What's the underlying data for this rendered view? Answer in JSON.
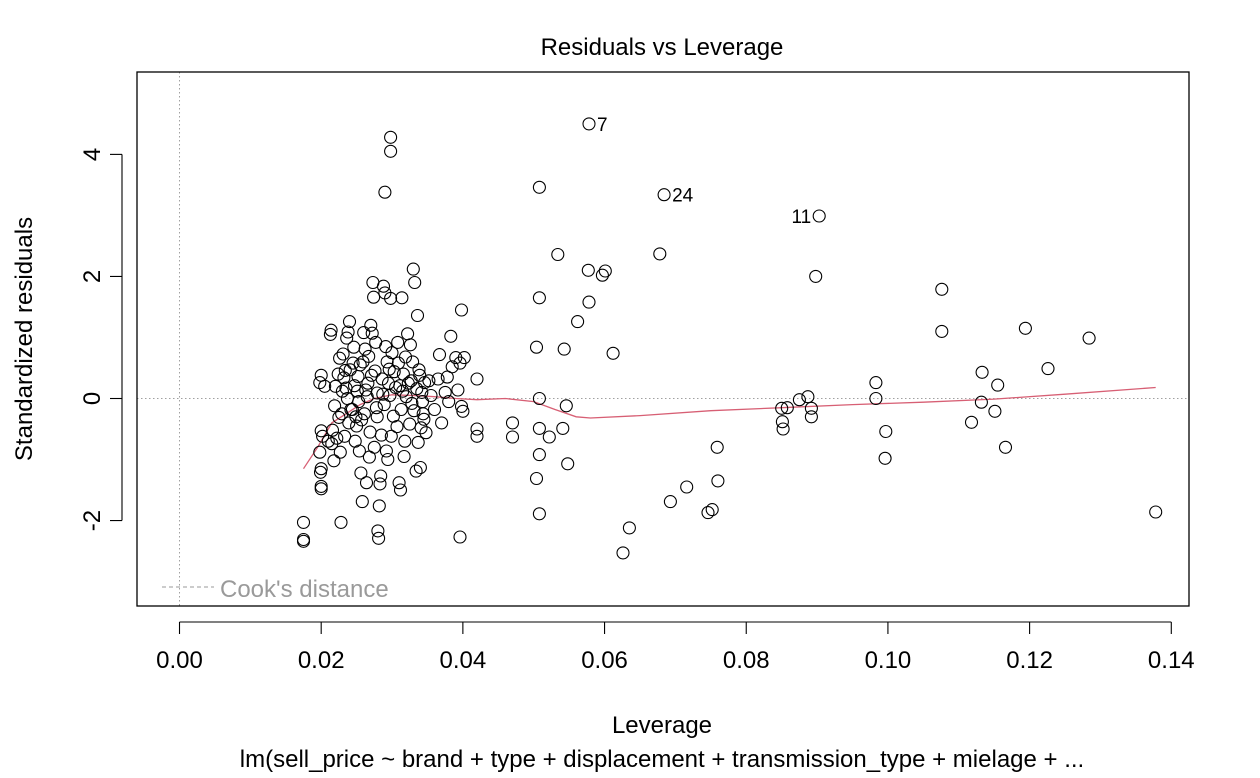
{
  "chart_data": {
    "type": "scatter",
    "title": "Residuals vs Leverage",
    "xlabel": "Leverage",
    "ylabel": "Standardized residuals",
    "subtitle": "lm(sell_price ~ brand + type + displacement + transmission_type + mielage + ...",
    "xlim": [
      -0.006,
      0.1425
    ],
    "ylim": [
      -3.4,
      5.35
    ],
    "x_ticks": [
      0.0,
      0.02,
      0.04,
      0.06,
      0.08,
      0.1,
      0.12,
      0.14
    ],
    "x_tick_labels": [
      "0.00",
      "0.02",
      "0.04",
      "0.06",
      "0.08",
      "0.10",
      "0.12",
      "0.14"
    ],
    "y_ticks": [
      -2,
      0,
      2,
      4
    ],
    "y_tick_labels": [
      "-2",
      "0",
      "2",
      "4"
    ],
    "reference_lines": {
      "x": 0,
      "y": 0,
      "style": "dotted",
      "color": "#a0a0a0"
    },
    "legend": {
      "label": "Cook's distance",
      "position": "bottom-left",
      "style": "dashed"
    },
    "colors": {
      "points": "#000000",
      "smooth": "#d75f74",
      "reference": "#a0a0a0",
      "legend": "#9a9a9a"
    },
    "labeled_points": [
      {
        "x": 0.0578,
        "y": 4.5,
        "label": "7",
        "side": "right"
      },
      {
        "x": 0.0684,
        "y": 3.34,
        "label": "24",
        "side": "right"
      },
      {
        "x": 0.0903,
        "y": 2.99,
        "label": "11",
        "side": "left"
      }
    ],
    "points": [
      [
        0.0298,
        4.28
      ],
      [
        0.0298,
        4.05
      ],
      [
        0.029,
        3.38
      ],
      [
        0.0508,
        3.46
      ],
      [
        0.0534,
        2.36
      ],
      [
        0.0577,
        2.1
      ],
      [
        0.0597,
        2.02
      ],
      [
        0.0601,
        2.09
      ],
      [
        0.0678,
        2.37
      ],
      [
        0.0898,
        2.0
      ],
      [
        0.0508,
        1.65
      ],
      [
        0.0578,
        1.58
      ],
      [
        0.0562,
        1.26
      ],
      [
        0.0504,
        0.84
      ],
      [
        0.0543,
        0.81
      ],
      [
        0.0612,
        0.74
      ],
      [
        0.0508,
        0.0
      ],
      [
        0.047,
        -0.4
      ],
      [
        0.047,
        -0.63
      ],
      [
        0.0508,
        -0.92
      ],
      [
        0.0522,
        -0.63
      ],
      [
        0.0541,
        -0.49
      ],
      [
        0.0508,
        -0.49
      ],
      [
        0.0546,
        -0.12
      ],
      [
        0.0548,
        -1.07
      ],
      [
        0.0504,
        -1.31
      ],
      [
        0.0508,
        -1.89
      ],
      [
        0.0693,
        -1.69
      ],
      [
        0.0716,
        -1.45
      ],
      [
        0.0746,
        -1.87
      ],
      [
        0.0752,
        -1.82
      ],
      [
        0.076,
        -1.35
      ],
      [
        0.0759,
        -0.8
      ],
      [
        0.0635,
        -2.12
      ],
      [
        0.0626,
        -2.53
      ],
      [
        0.042,
        0.32
      ],
      [
        0.042,
        -0.5
      ],
      [
        0.042,
        -0.62
      ],
      [
        0.0398,
        1.45
      ],
      [
        0.0396,
        0.58
      ],
      [
        0.0402,
        0.67
      ],
      [
        0.039,
        0.67
      ],
      [
        0.0383,
        1.02
      ],
      [
        0.0398,
        -0.13
      ],
      [
        0.0396,
        -2.27
      ],
      [
        0.04,
        -0.21
      ],
      [
        0.0393,
        0.14
      ],
      [
        0.0378,
        0.35
      ],
      [
        0.0367,
        0.72
      ],
      [
        0.0352,
        0.29
      ],
      [
        0.085,
        -0.16
      ],
      [
        0.0858,
        -0.15
      ],
      [
        0.0852,
        -0.5
      ],
      [
        0.0851,
        -0.38
      ],
      [
        0.0875,
        -0.02
      ],
      [
        0.0887,
        0.03
      ],
      [
        0.0892,
        -0.16
      ],
      [
        0.0892,
        -0.3
      ],
      [
        0.0983,
        0.26
      ],
      [
        0.0983,
        0.0
      ],
      [
        0.0997,
        -0.54
      ],
      [
        0.0996,
        -0.98
      ],
      [
        0.1076,
        1.79
      ],
      [
        0.1076,
        1.1
      ],
      [
        0.1118,
        -0.39
      ],
      [
        0.1133,
        0.43
      ],
      [
        0.1132,
        -0.06
      ],
      [
        0.1151,
        -0.21
      ],
      [
        0.1155,
        0.22
      ],
      [
        0.1166,
        -0.8
      ],
      [
        0.1194,
        1.15
      ],
      [
        0.1226,
        0.49
      ],
      [
        0.1284,
        0.99
      ],
      [
        0.1378,
        -1.86
      ],
      [
        0.02,
        0.38
      ],
      [
        0.0198,
        0.26
      ],
      [
        0.0205,
        0.2
      ],
      [
        0.02,
        -0.53
      ],
      [
        0.0202,
        -0.62
      ],
      [
        0.0198,
        -0.88
      ],
      [
        0.02,
        -1.15
      ],
      [
        0.0199,
        -1.21
      ],
      [
        0.02,
        -1.44
      ],
      [
        0.02,
        -1.48
      ],
      [
        0.0175,
        -2.03
      ],
      [
        0.0175,
        -2.31
      ],
      [
        0.0175,
        -2.34
      ],
      [
        0.021,
        -0.7
      ],
      [
        0.0215,
        -0.74
      ],
      [
        0.0213,
        1.05
      ],
      [
        0.0214,
        1.12
      ],
      [
        0.0216,
        -0.52
      ],
      [
        0.0218,
        -1.02
      ],
      [
        0.0222,
        -0.65
      ],
      [
        0.0225,
        -0.31
      ],
      [
        0.0228,
        -2.03
      ],
      [
        0.023,
        0.12
      ],
      [
        0.0231,
        0.73
      ],
      [
        0.0234,
        0.46
      ],
      [
        0.0236,
        0.99
      ],
      [
        0.0238,
        1.09
      ],
      [
        0.024,
        1.26
      ],
      [
        0.0242,
        -0.18
      ],
      [
        0.0245,
        0.58
      ],
      [
        0.0247,
        0.21
      ],
      [
        0.025,
        -0.45
      ],
      [
        0.0252,
        0.36
      ],
      [
        0.0254,
        -0.86
      ],
      [
        0.0256,
        -1.22
      ],
      [
        0.0258,
        -1.69
      ],
      [
        0.026,
        1.08
      ],
      [
        0.0262,
        0.81
      ],
      [
        0.0264,
        -1.38
      ],
      [
        0.0266,
        0.25
      ],
      [
        0.0268,
        -0.96
      ],
      [
        0.027,
        1.2
      ],
      [
        0.0272,
        1.07
      ],
      [
        0.0273,
        1.9
      ],
      [
        0.0274,
        1.66
      ],
      [
        0.0276,
        0.45
      ],
      [
        0.0278,
        -0.15
      ],
      [
        0.028,
        -2.17
      ],
      [
        0.0281,
        -2.29
      ],
      [
        0.0282,
        -1.76
      ],
      [
        0.0283,
        -1.4
      ],
      [
        0.0284,
        -1.27
      ],
      [
        0.0285,
        -0.6
      ],
      [
        0.0287,
        0.07
      ],
      [
        0.0288,
        1.84
      ],
      [
        0.029,
        1.73
      ],
      [
        0.0292,
        -0.86
      ],
      [
        0.0294,
        -1.0
      ],
      [
        0.0296,
        0.48
      ],
      [
        0.0298,
        1.64
      ],
      [
        0.03,
        0.75
      ],
      [
        0.0302,
        -0.29
      ],
      [
        0.0305,
        0.18
      ],
      [
        0.0308,
        0.92
      ],
      [
        0.031,
        -1.38
      ],
      [
        0.0312,
        -1.5
      ],
      [
        0.0314,
        1.65
      ],
      [
        0.0316,
        0.4
      ],
      [
        0.0318,
        -0.7
      ],
      [
        0.032,
        0.03
      ],
      [
        0.0322,
        1.06
      ],
      [
        0.0325,
        -0.42
      ],
      [
        0.0327,
        0.29
      ],
      [
        0.033,
        2.12
      ],
      [
        0.0332,
        1.9
      ],
      [
        0.0334,
        -1.19
      ],
      [
        0.0336,
        1.36
      ],
      [
        0.0338,
        0.47
      ],
      [
        0.034,
        -1.13
      ],
      [
        0.0342,
        0.1
      ],
      [
        0.0344,
        -0.25
      ],
      [
        0.0346,
        0.26
      ],
      [
        0.0348,
        -0.56
      ],
      [
        0.0226,
        0.66
      ],
      [
        0.0232,
        0.34
      ],
      [
        0.0239,
        -0.4
      ],
      [
        0.0246,
        0.84
      ],
      [
        0.0253,
        -0.05
      ],
      [
        0.0259,
        0.6
      ],
      [
        0.0265,
        0.03
      ],
      [
        0.0271,
        0.38
      ],
      [
        0.0277,
        0.92
      ],
      [
        0.0286,
        0.32
      ],
      [
        0.0293,
        0.6
      ],
      [
        0.0303,
        0.44
      ],
      [
        0.0311,
        0.21
      ],
      [
        0.0319,
        0.68
      ],
      [
        0.0328,
        -0.08
      ],
      [
        0.0337,
        -0.72
      ],
      [
        0.0345,
        -0.34
      ],
      [
        0.0229,
        -0.25
      ],
      [
        0.0237,
        0.0
      ],
      [
        0.0244,
        -0.18
      ],
      [
        0.0251,
        0.12
      ],
      [
        0.0257,
        -0.35
      ],
      [
        0.0263,
        0.14
      ],
      [
        0.0269,
        -0.55
      ],
      [
        0.0279,
        0.09
      ],
      [
        0.0289,
        -0.1
      ],
      [
        0.0297,
        0.05
      ],
      [
        0.0307,
        -0.46
      ],
      [
        0.0315,
        0.12
      ],
      [
        0.0323,
        0.25
      ],
      [
        0.0331,
        -0.2
      ],
      [
        0.0339,
        0.38
      ],
      [
        0.0355,
        0.05
      ],
      [
        0.036,
        -0.18
      ],
      [
        0.0365,
        0.32
      ],
      [
        0.037,
        -0.4
      ],
      [
        0.0375,
        0.1
      ],
      [
        0.038,
        -0.05
      ],
      [
        0.0385,
        0.52
      ],
      [
        0.0219,
        -0.12
      ],
      [
        0.0224,
        0.4
      ],
      [
        0.0227,
        -0.88
      ],
      [
        0.0233,
        -0.62
      ],
      [
        0.0241,
        0.47
      ],
      [
        0.0248,
        -0.7
      ],
      [
        0.0255,
        0.55
      ],
      [
        0.0261,
        -0.25
      ],
      [
        0.0267,
        0.69
      ],
      [
        0.0275,
        -0.8
      ],
      [
        0.0291,
        0.85
      ],
      [
        0.0299,
        -0.62
      ],
      [
        0.0309,
        0.58
      ],
      [
        0.0317,
        -0.95
      ],
      [
        0.0326,
        0.88
      ],
      [
        0.0335,
        0.16
      ],
      [
        0.0343,
        -0.05
      ],
      [
        0.022,
        0.2
      ],
      [
        0.0235,
        0.17
      ],
      [
        0.0249,
        -0.3
      ],
      [
        0.0279,
        -0.3
      ],
      [
        0.0295,
        0.25
      ],
      [
        0.0313,
        -0.18
      ],
      [
        0.0329,
        0.6
      ],
      [
        0.0341,
        -0.48
      ]
    ],
    "smooth_line": [
      [
        0.0175,
        -1.15
      ],
      [
        0.0195,
        -0.8
      ],
      [
        0.0215,
        -0.4
      ],
      [
        0.0235,
        -0.25
      ],
      [
        0.0255,
        -0.1
      ],
      [
        0.0275,
        0.0
      ],
      [
        0.03,
        0.06
      ],
      [
        0.033,
        0.05
      ],
      [
        0.036,
        0.03
      ],
      [
        0.039,
        0.0
      ],
      [
        0.042,
        -0.02
      ],
      [
        0.046,
        0.0
      ],
      [
        0.05,
        -0.05
      ],
      [
        0.053,
        -0.18
      ],
      [
        0.056,
        -0.3
      ],
      [
        0.058,
        -0.32
      ],
      [
        0.065,
        -0.28
      ],
      [
        0.075,
        -0.2
      ],
      [
        0.085,
        -0.15
      ],
      [
        0.095,
        -0.1
      ],
      [
        0.105,
        -0.06
      ],
      [
        0.115,
        -0.01
      ],
      [
        0.125,
        0.07
      ],
      [
        0.1378,
        0.18
      ]
    ]
  }
}
